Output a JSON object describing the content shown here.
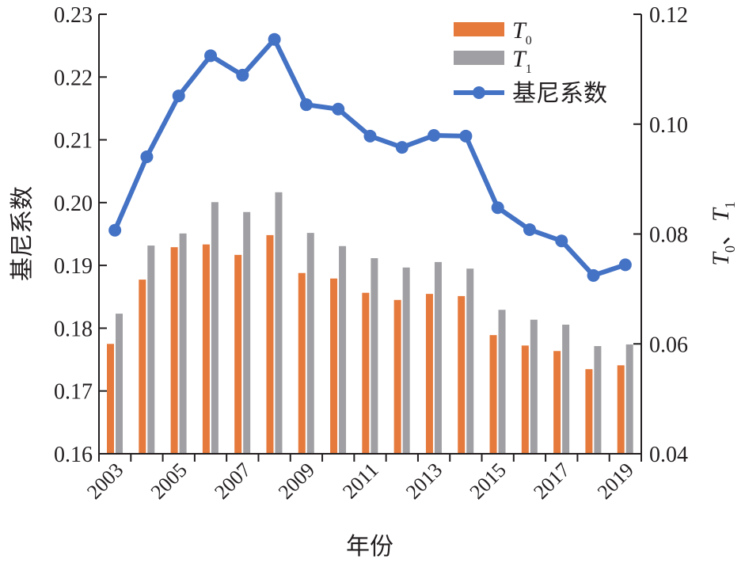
{
  "chart_data": {
    "type": "bar+line",
    "xlabel": "年份",
    "ylabel_left": "基尼系数",
    "ylabel_right": "T0、T1",
    "ylabel_right_parts": {
      "t0_base": "T",
      "t0_sub": "0",
      "sep": "、",
      "t1_base": "T",
      "t1_sub": "1"
    },
    "ylim_left": [
      0.16,
      0.23
    ],
    "ylim_right": [
      0.04,
      0.12
    ],
    "yticks_left": [
      "0.16",
      "0.17",
      "0.18",
      "0.19",
      "0.20",
      "0.21",
      "0.22",
      "0.23"
    ],
    "yticks_right": [
      "0.04",
      "0.06",
      "0.08",
      "0.10",
      "0.12"
    ],
    "categories": [
      "2003",
      "2004",
      "2005",
      "2006",
      "2007",
      "2008",
      "2009",
      "2010",
      "2011",
      "2012",
      "2013",
      "2014",
      "2015",
      "2016",
      "2017",
      "2018",
      "2019"
    ],
    "xtick_labels": [
      "2003",
      "2005",
      "2007",
      "2009",
      "2011",
      "2013",
      "2015",
      "2017",
      "2019"
    ],
    "legend_position": "top-right",
    "series": [
      {
        "name": "T0",
        "label_base": "T",
        "label_sub": "0",
        "type": "bar",
        "axis": "right",
        "color": "#e57a3c",
        "values": [
          0.06,
          0.0717,
          0.0776,
          0.0781,
          0.0762,
          0.0798,
          0.0729,
          0.0719,
          0.0693,
          0.068,
          0.0691,
          0.0687,
          0.0616,
          0.0597,
          0.0587,
          0.0554,
          0.0561
        ]
      },
      {
        "name": "T1",
        "label_base": "T",
        "label_sub": "1",
        "type": "bar",
        "axis": "right",
        "color": "#a0a0a4",
        "values": [
          0.0655,
          0.0779,
          0.0801,
          0.0858,
          0.084,
          0.0876,
          0.0802,
          0.0778,
          0.0756,
          0.0739,
          0.0749,
          0.0737,
          0.0662,
          0.0644,
          0.0635,
          0.0596,
          0.0599
        ]
      },
      {
        "name": "基尼系数",
        "type": "line",
        "axis": "left",
        "color": "#4472c4",
        "values": [
          0.1956,
          0.2073,
          0.217,
          0.2234,
          0.2203,
          0.226,
          0.2156,
          0.2149,
          0.2106,
          0.2088,
          0.2107,
          0.2106,
          0.1992,
          0.1957,
          0.1939,
          0.1884,
          0.1901
        ]
      }
    ]
  }
}
